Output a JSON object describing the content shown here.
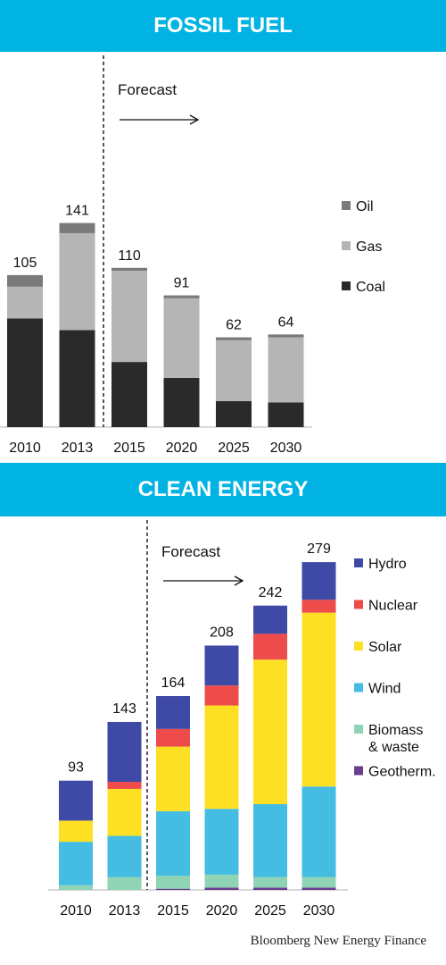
{
  "source": "Bloomberg New Energy Finance",
  "chart_data": [
    {
      "type": "bar",
      "stacked": true,
      "title": "FOSSIL FUEL",
      "categories": [
        "2010",
        "2013",
        "2015",
        "2020",
        "2025",
        "2030"
      ],
      "totals": [
        105,
        141,
        110,
        91,
        62,
        64
      ],
      "forecast_label": "Forecast",
      "forecast_from": "2015",
      "series": [
        {
          "name": "Coal",
          "color": "#2a2a2a",
          "values": [
            75,
            67,
            45,
            34,
            18,
            17
          ]
        },
        {
          "name": "Gas",
          "color": "#b5b5b5",
          "values": [
            22,
            67,
            63,
            55,
            42,
            45
          ]
        },
        {
          "name": "Oil",
          "color": "#7a7a7a",
          "values": [
            8,
            7,
            2,
            2,
            2,
            2
          ]
        }
      ],
      "legend": [
        "Oil",
        "Gas",
        "Coal"
      ],
      "legend_position": "right",
      "ylim": [
        0,
        150
      ],
      "grid": false
    },
    {
      "type": "bar",
      "stacked": true,
      "title": "CLEAN ENERGY",
      "categories": [
        "2010",
        "2013",
        "2015",
        "2020",
        "2025",
        "2030"
      ],
      "totals": [
        93,
        143,
        164,
        208,
        242,
        279
      ],
      "forecast_label": "Forecast",
      "forecast_from": "2015",
      "series": [
        {
          "name": "Geotherm.",
          "color": "#6b3d8f",
          "values": [
            0,
            0,
            1,
            2,
            2,
            2
          ]
        },
        {
          "name": "Biomass\n& waste",
          "color": "#8fd4b4",
          "values": [
            4,
            11,
            11,
            11,
            9,
            9
          ]
        },
        {
          "name": "Wind",
          "color": "#45bde3",
          "values": [
            37,
            35,
            55,
            56,
            62,
            77
          ]
        },
        {
          "name": "Solar",
          "color": "#fde023",
          "values": [
            18,
            40,
            55,
            88,
            123,
            148
          ]
        },
        {
          "name": "Nuclear",
          "color": "#ee4b4b",
          "values": [
            0,
            6,
            15,
            17,
            22,
            11
          ]
        },
        {
          "name": "Hydro",
          "color": "#3f4aa7",
          "values": [
            34,
            51,
            28,
            34,
            24,
            32
          ]
        }
      ],
      "legend": [
        "Hydro",
        "Nuclear",
        "Solar",
        "Wind",
        "Biomass\n& waste",
        "Geotherm."
      ],
      "legend_position": "right",
      "ylim": [
        0,
        290
      ],
      "grid": false
    }
  ]
}
